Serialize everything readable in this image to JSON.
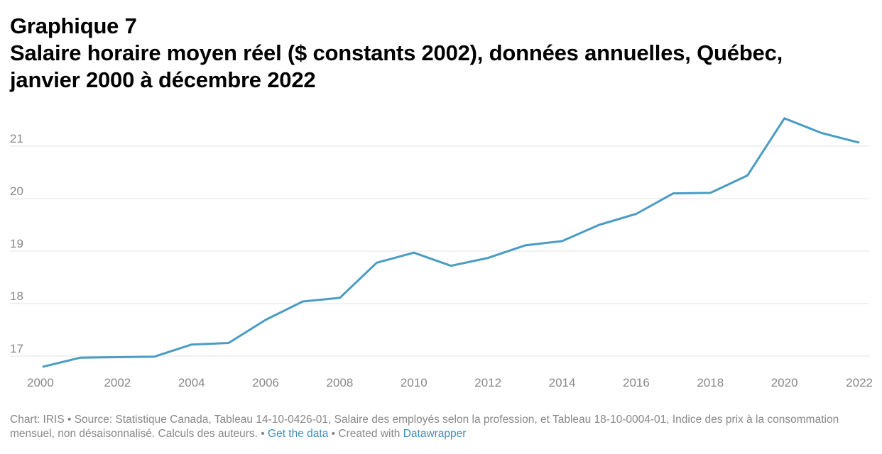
{
  "header": {
    "kicker": "Graphique 7",
    "title_line1": "Salaire horaire moyen réel ($ constants 2002), données annuelles, Québec,",
    "title_line2": "janvier 2000 à décembre 2022"
  },
  "footer": {
    "chart_credit": "Chart: IRIS",
    "separator": " • ",
    "source_text": "Source: Statistique Canada, Tableau 14-10-0426-01, Salaire des employés selon la profession, et Tableau 18-10-0004-01, Indice des prix à la consommation mensuel, non désaisonnalisé. Calculs des auteurs.",
    "get_data_link": "Get the data",
    "created_with": "Created with ",
    "datawrapper_link": "Datawrapper"
  },
  "colors": {
    "line": "#4a9cc4",
    "grid": "#e3e3e3",
    "tick_text": "#888888",
    "link": "#3d8fbd"
  },
  "chart_data": {
    "type": "line",
    "title": "Salaire horaire moyen réel ($ constants 2002), données annuelles, Québec, janvier 2000 à décembre 2022",
    "xlabel": "",
    "ylabel": "",
    "x": [
      2000,
      2001,
      2002,
      2003,
      2004,
      2005,
      2006,
      2007,
      2008,
      2009,
      2010,
      2011,
      2012,
      2013,
      2014,
      2015,
      2016,
      2017,
      2018,
      2019,
      2020,
      2021,
      2022
    ],
    "series": [
      {
        "values": [
          16.8,
          16.97,
          16.98,
          16.99,
          17.22,
          17.25,
          17.69,
          18.04,
          18.11,
          18.78,
          18.97,
          18.72,
          18.87,
          19.11,
          19.19,
          19.5,
          19.71,
          20.1,
          20.11,
          20.44,
          21.53,
          21.25,
          21.07
        ]
      }
    ],
    "xlim": [
      2000,
      2022
    ],
    "ylim": [
      16.8,
      21.6
    ],
    "x_ticks": [
      "2000",
      "2002",
      "2004",
      "2006",
      "2008",
      "2010",
      "2012",
      "2014",
      "2016",
      "2018",
      "2020",
      "2022"
    ],
    "y_ticks": [
      "17",
      "18",
      "19",
      "20",
      "21"
    ],
    "grid": "horizontal",
    "legend": "none"
  }
}
